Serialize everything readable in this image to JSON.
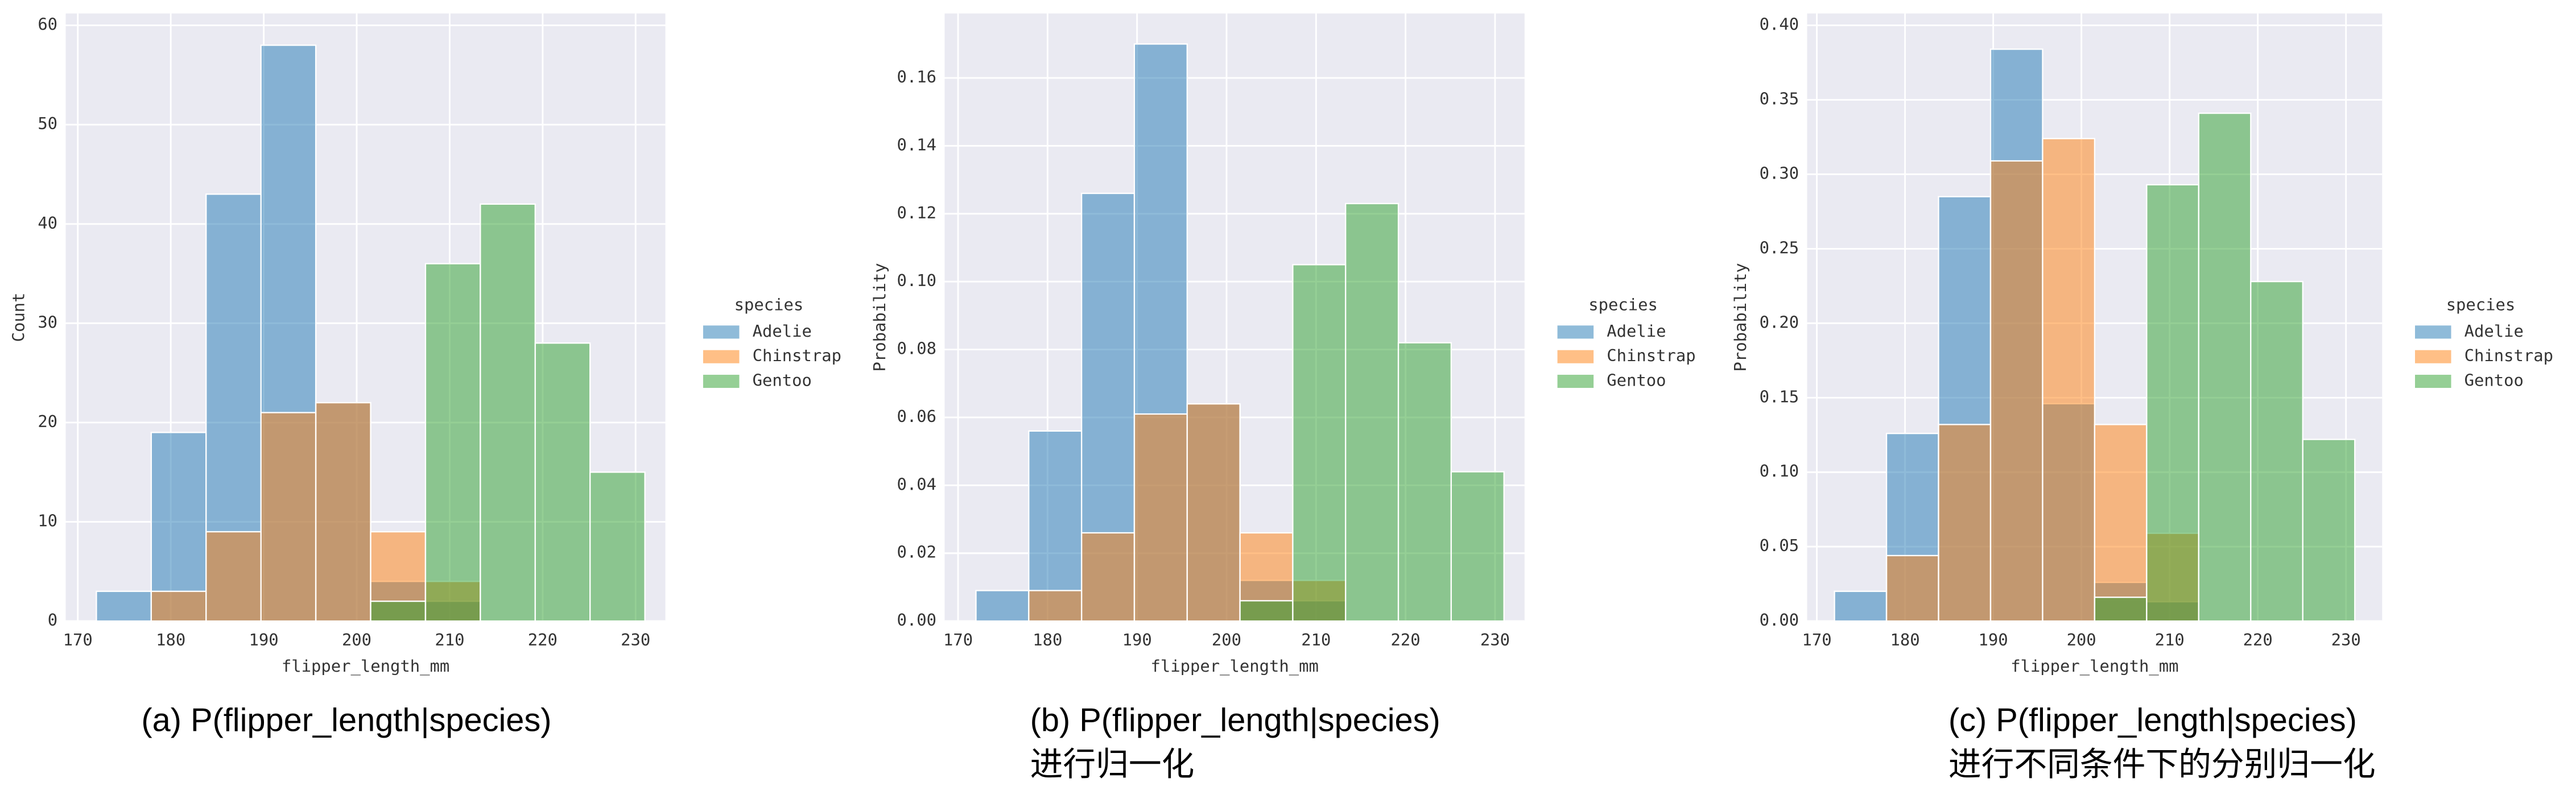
{
  "chart_data": [
    {
      "type": "histogram",
      "ylabel": "Count",
      "xlabel": "flipper_length_mm",
      "legend_title": "species",
      "caption": [
        "(a) P(flipper_length|species)"
      ],
      "bins": [
        172,
        177.9,
        183.8,
        189.7,
        195.6,
        201.5,
        207.4,
        213.3,
        219.2,
        225.1,
        231
      ],
      "xlim": [
        168.7,
        233.2
      ],
      "xticks": [
        170,
        180,
        190,
        200,
        210,
        220,
        230
      ],
      "ylim": [
        0,
        61.2
      ],
      "yticks": [
        0,
        10,
        20,
        30,
        40,
        50,
        60
      ],
      "series": [
        {
          "name": "Adelie",
          "color": "#1f77b4",
          "values": [
            3,
            19,
            43,
            58,
            22,
            4,
            2,
            0,
            0,
            0
          ]
        },
        {
          "name": "Chinstrap",
          "color": "#ff7f0e",
          "values": [
            0,
            3,
            9,
            21,
            22,
            9,
            4,
            0,
            0,
            0
          ]
        },
        {
          "name": "Gentoo",
          "color": "#2ca02c",
          "values": [
            0,
            0,
            0,
            0,
            0,
            2,
            36,
            42,
            28,
            15
          ]
        }
      ]
    },
    {
      "type": "histogram",
      "ylabel": "Probability",
      "xlabel": "flipper_length_mm",
      "legend_title": "species",
      "caption": [
        "(b) P(flipper_length|species)",
        "进行归一化"
      ],
      "bins": [
        172,
        177.9,
        183.8,
        189.7,
        195.6,
        201.5,
        207.4,
        213.3,
        219.2,
        225.1,
        231
      ],
      "xlim": [
        168.5,
        233.3
      ],
      "xticks": [
        170,
        180,
        190,
        200,
        210,
        220,
        230
      ],
      "ylim": [
        0,
        0.179
      ],
      "yticks": [
        {
          "value": 0,
          "label": "0.00"
        },
        {
          "value": 0.02,
          "label": "0.02"
        },
        {
          "value": 0.04,
          "label": "0.04"
        },
        {
          "value": 0.06,
          "label": "0.06"
        },
        {
          "value": 0.08,
          "label": "0.08"
        },
        {
          "value": 0.1,
          "label": "0.10"
        },
        {
          "value": 0.12,
          "label": "0.12"
        },
        {
          "value": 0.14,
          "label": "0.14"
        },
        {
          "value": 0.16,
          "label": "0.16"
        }
      ],
      "series": [
        {
          "name": "Adelie",
          "color": "#1f77b4",
          "values": [
            0.009,
            0.056,
            0.126,
            0.17,
            0.064,
            0.012,
            0.006,
            0,
            0,
            0
          ]
        },
        {
          "name": "Chinstrap",
          "color": "#ff7f0e",
          "values": [
            0,
            0.009,
            0.026,
            0.061,
            0.064,
            0.026,
            0.012,
            0,
            0,
            0
          ]
        },
        {
          "name": "Gentoo",
          "color": "#2ca02c",
          "values": [
            0,
            0,
            0,
            0,
            0,
            0.006,
            0.105,
            0.123,
            0.082,
            0.044
          ]
        }
      ]
    },
    {
      "type": "histogram",
      "ylabel": "Probability",
      "xlabel": "flipper_length_mm",
      "legend_title": "species",
      "caption": [
        "(c) P(flipper_length|species)",
        "进行不同条件下的分别归一化"
      ],
      "bins": [
        172,
        177.9,
        183.8,
        189.7,
        195.6,
        201.5,
        207.4,
        213.3,
        219.2,
        225.1,
        231
      ],
      "xlim": [
        168.9,
        234.1
      ],
      "xticks": [
        170,
        180,
        190,
        200,
        210,
        220,
        230
      ],
      "ylim": [
        0,
        0.408
      ],
      "yticks": [
        {
          "value": 0,
          "label": "0.00"
        },
        {
          "value": 0.05,
          "label": "0.05"
        },
        {
          "value": 0.1,
          "label": "0.10"
        },
        {
          "value": 0.15,
          "label": "0.15"
        },
        {
          "value": 0.2,
          "label": "0.20"
        },
        {
          "value": 0.25,
          "label": "0.25"
        },
        {
          "value": 0.3,
          "label": "0.30"
        },
        {
          "value": 0.35,
          "label": "0.35"
        },
        {
          "value": 0.4,
          "label": "0.40"
        }
      ],
      "series": [
        {
          "name": "Adelie",
          "color": "#1f77b4",
          "values": [
            0.02,
            0.126,
            0.285,
            0.384,
            0.146,
            0.026,
            0.013,
            0,
            0,
            0
          ]
        },
        {
          "name": "Chinstrap",
          "color": "#ff7f0e",
          "values": [
            0,
            0.044,
            0.132,
            0.309,
            0.324,
            0.132,
            0.059,
            0,
            0,
            0
          ]
        },
        {
          "name": "Gentoo",
          "color": "#2ca02c",
          "values": [
            0,
            0,
            0,
            0,
            0,
            0.016,
            0.293,
            0.341,
            0.228,
            0.122
          ]
        }
      ]
    }
  ]
}
